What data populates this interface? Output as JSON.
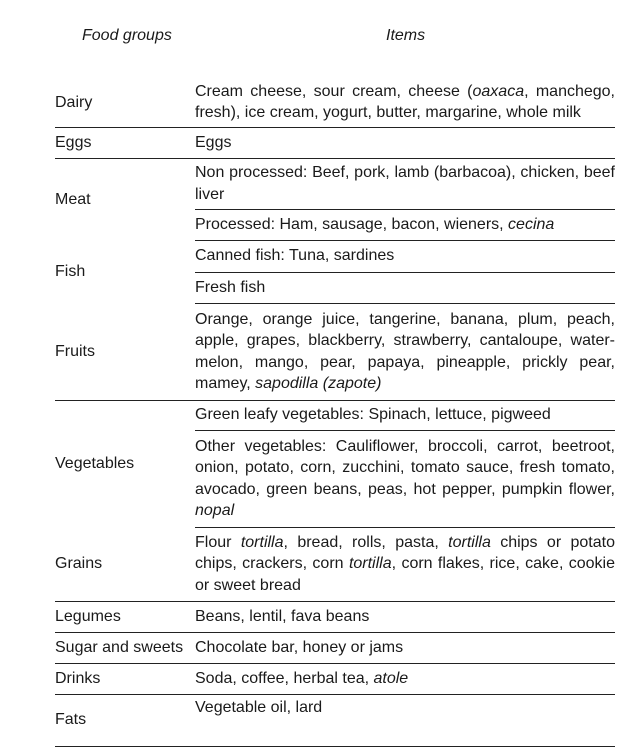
{
  "header": {
    "food_groups": "Food groups",
    "items": "Items"
  },
  "rows": [
    {
      "group": "Dairy",
      "items": [
        [
          [
            "Cream cheese, sour cream, cheese (",
            0
          ],
          [
            "oaxaca",
            1
          ],
          [
            ", manchego, fresh), ice cream, yogurt, butter, margarine, whole milk",
            0
          ]
        ]
      ]
    },
    {
      "group": "Eggs",
      "items": [
        [
          [
            "Eggs",
            0
          ]
        ]
      ]
    },
    {
      "group": "Meat",
      "items": [
        [
          [
            "Non processed: Beef, pork, lamb (barbacoa), chicken, beef liver",
            0
          ]
        ],
        [
          [
            "Processed: Ham, sausage, bacon, wieners, ",
            0
          ],
          [
            "cecina",
            1
          ]
        ]
      ]
    },
    {
      "group": "Fish",
      "items": [
        [
          [
            "Canned fish: Tuna, sardines",
            0
          ]
        ],
        [
          [
            "Fresh fish",
            0
          ]
        ]
      ]
    },
    {
      "group": "Fruits",
      "items": [
        [
          [
            "Orange, orange juice, tangerine, banana, plum, peach, apple, grapes, blackberry, strawberry, cantaloupe, water­melon, mango, pear, papaya, pineapple, prickly pear, mamey, ",
            0
          ],
          [
            "sapodilla (zapote)",
            1
          ]
        ]
      ]
    },
    {
      "group": "Vegetables",
      "items": [
        [
          [
            "Green leafy vegetables: Spinach, lettuce, pigweed",
            0
          ]
        ],
        [
          [
            "Other vegetables: Cauliflower, broccoli, carrot, beetroot, onion, potato, corn, zucchini, tomato sauce, fresh to­mato, avocado, green beans, peas, hot pepper, pumpkin flower, ",
            0
          ],
          [
            "nopal",
            1
          ]
        ]
      ]
    },
    {
      "group": "Grains",
      "items": [
        [
          [
            "Flour ",
            0
          ],
          [
            "tortilla",
            1
          ],
          [
            ", bread, rolls, pasta, ",
            0
          ],
          [
            "tortilla",
            1
          ],
          [
            " chips or potato chips, crackers, corn ",
            0
          ],
          [
            "tortilla",
            1
          ],
          [
            ", corn flakes, rice, cake, cookie or sweet bread",
            0
          ]
        ]
      ]
    },
    {
      "group": "Legumes",
      "items": [
        [
          [
            "Beans, lentil, fava beans",
            0
          ]
        ]
      ]
    },
    {
      "group": "Sugar and sweets",
      "items": [
        [
          [
            "Chocolate bar, honey or jams",
            0
          ]
        ]
      ]
    },
    {
      "group": "Drinks",
      "items": [
        [
          [
            "Soda, coffee, herbal tea, ",
            0
          ],
          [
            "atole",
            1
          ]
        ]
      ]
    },
    {
      "group": "Fats",
      "items": [
        [
          [
            "Vegetable oil, lard",
            0
          ]
        ]
      ]
    }
  ]
}
